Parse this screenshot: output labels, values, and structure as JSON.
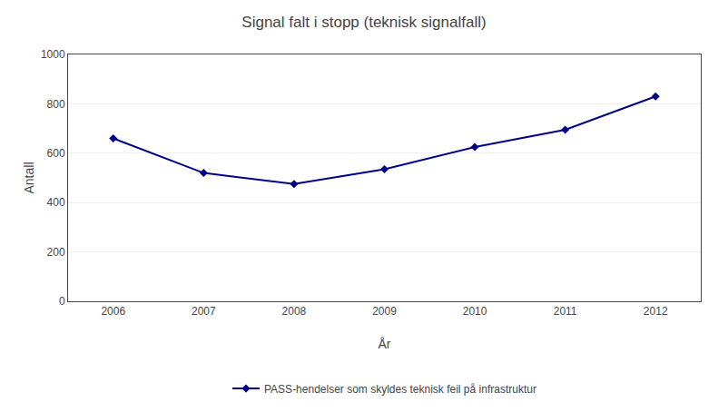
{
  "chart_data": {
    "type": "line",
    "title": "Signal falt i stopp (teknisk signalfall)",
    "xlabel": "År",
    "ylabel": "Antall",
    "x": [
      2006,
      2007,
      2008,
      2009,
      2010,
      2011,
      2012
    ],
    "series": [
      {
        "name": "PASS-hendelser som skyldes teknisk feil på infrastruktur",
        "color": "#00008B",
        "marker": "diamond",
        "values": [
          660,
          520,
          475,
          535,
          625,
          695,
          830
        ]
      }
    ],
    "xlim": [
      2005.5,
      2012.5
    ],
    "xticks": [
      2006,
      2007,
      2008,
      2009,
      2010,
      2011,
      2012
    ],
    "ylim": [
      0,
      1000
    ],
    "yticks": [
      0,
      200,
      400,
      600,
      800,
      1000
    ],
    "grid": "y",
    "legend": "bottom"
  }
}
